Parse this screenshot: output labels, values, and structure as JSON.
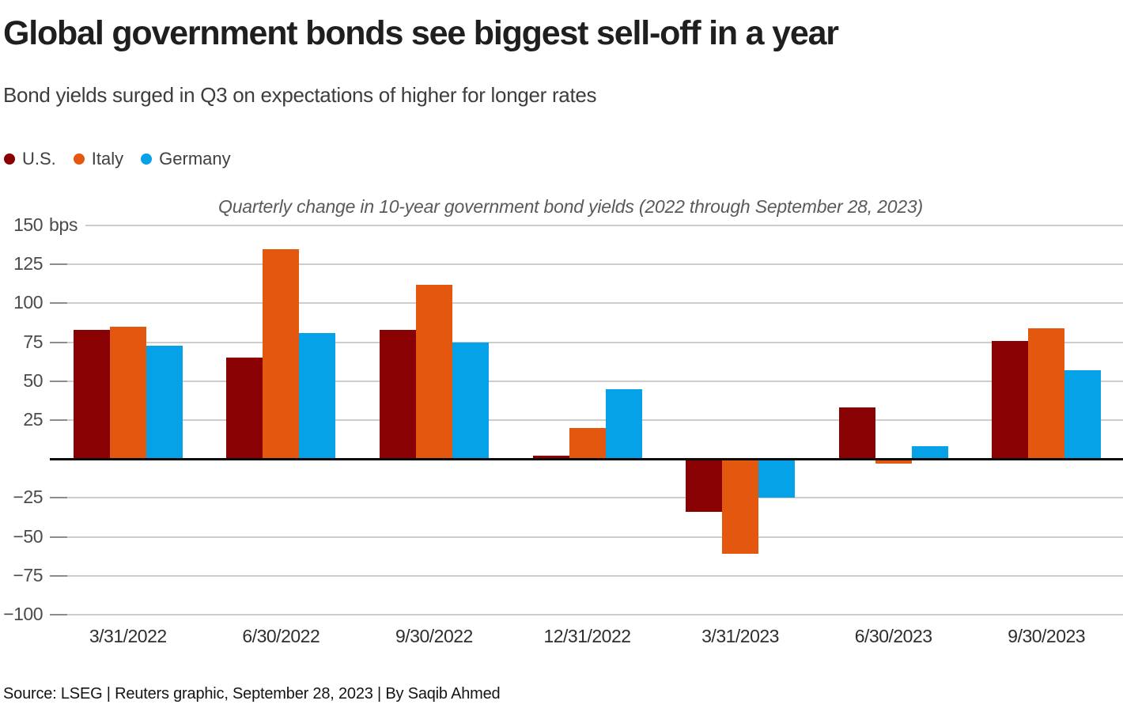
{
  "page": {
    "title": "Global government bonds see biggest sell-off in a year",
    "subtitle": "Bond yields surged in Q3 on expectations of higher for longer rates",
    "source_line": "Source: LSEG | Reuters graphic, September 28, 2023 | By Saqib Ahmed"
  },
  "chart_data": {
    "type": "bar",
    "title": "Global government bonds see biggest sell-off in a year",
    "subtitle": "Bond yields surged in Q3 on expectations of higher for longer rates",
    "annotation": "Quarterly change in 10-year government bond yields (2022 through September 28, 2023)",
    "unit_label": "bps",
    "categories": [
      "3/31/2022",
      "6/30/2022",
      "9/30/2022",
      "12/31/2022",
      "3/31/2023",
      "6/30/2023",
      "9/30/2023"
    ],
    "series": [
      {
        "name": "U.S.",
        "color": "#8a0104",
        "values": [
          83,
          65,
          83,
          2,
          -34,
          33,
          76
        ]
      },
      {
        "name": "Italy",
        "color": "#e4570e",
        "values": [
          85,
          135,
          112,
          20,
          -61,
          -3,
          84
        ]
      },
      {
        "name": "Germany",
        "color": "#06a2e8",
        "values": [
          73,
          81,
          75,
          45,
          -25,
          8,
          57
        ]
      }
    ],
    "ylim": [
      -100,
      150
    ],
    "ytick_step": 25,
    "yticks_labeled": [
      150,
      125,
      100,
      75,
      50,
      25,
      -25,
      -50,
      -75,
      -100
    ],
    "baseline": 0,
    "grid": "horizontal",
    "legend_position": "top-left"
  },
  "colors": {
    "grid": "#cdcdcd",
    "tick_dash": "#8c8c8c",
    "zero_line": "#0b0b0b",
    "us": "#8a0104",
    "italy": "#e4570e",
    "germany": "#06a2e8"
  }
}
